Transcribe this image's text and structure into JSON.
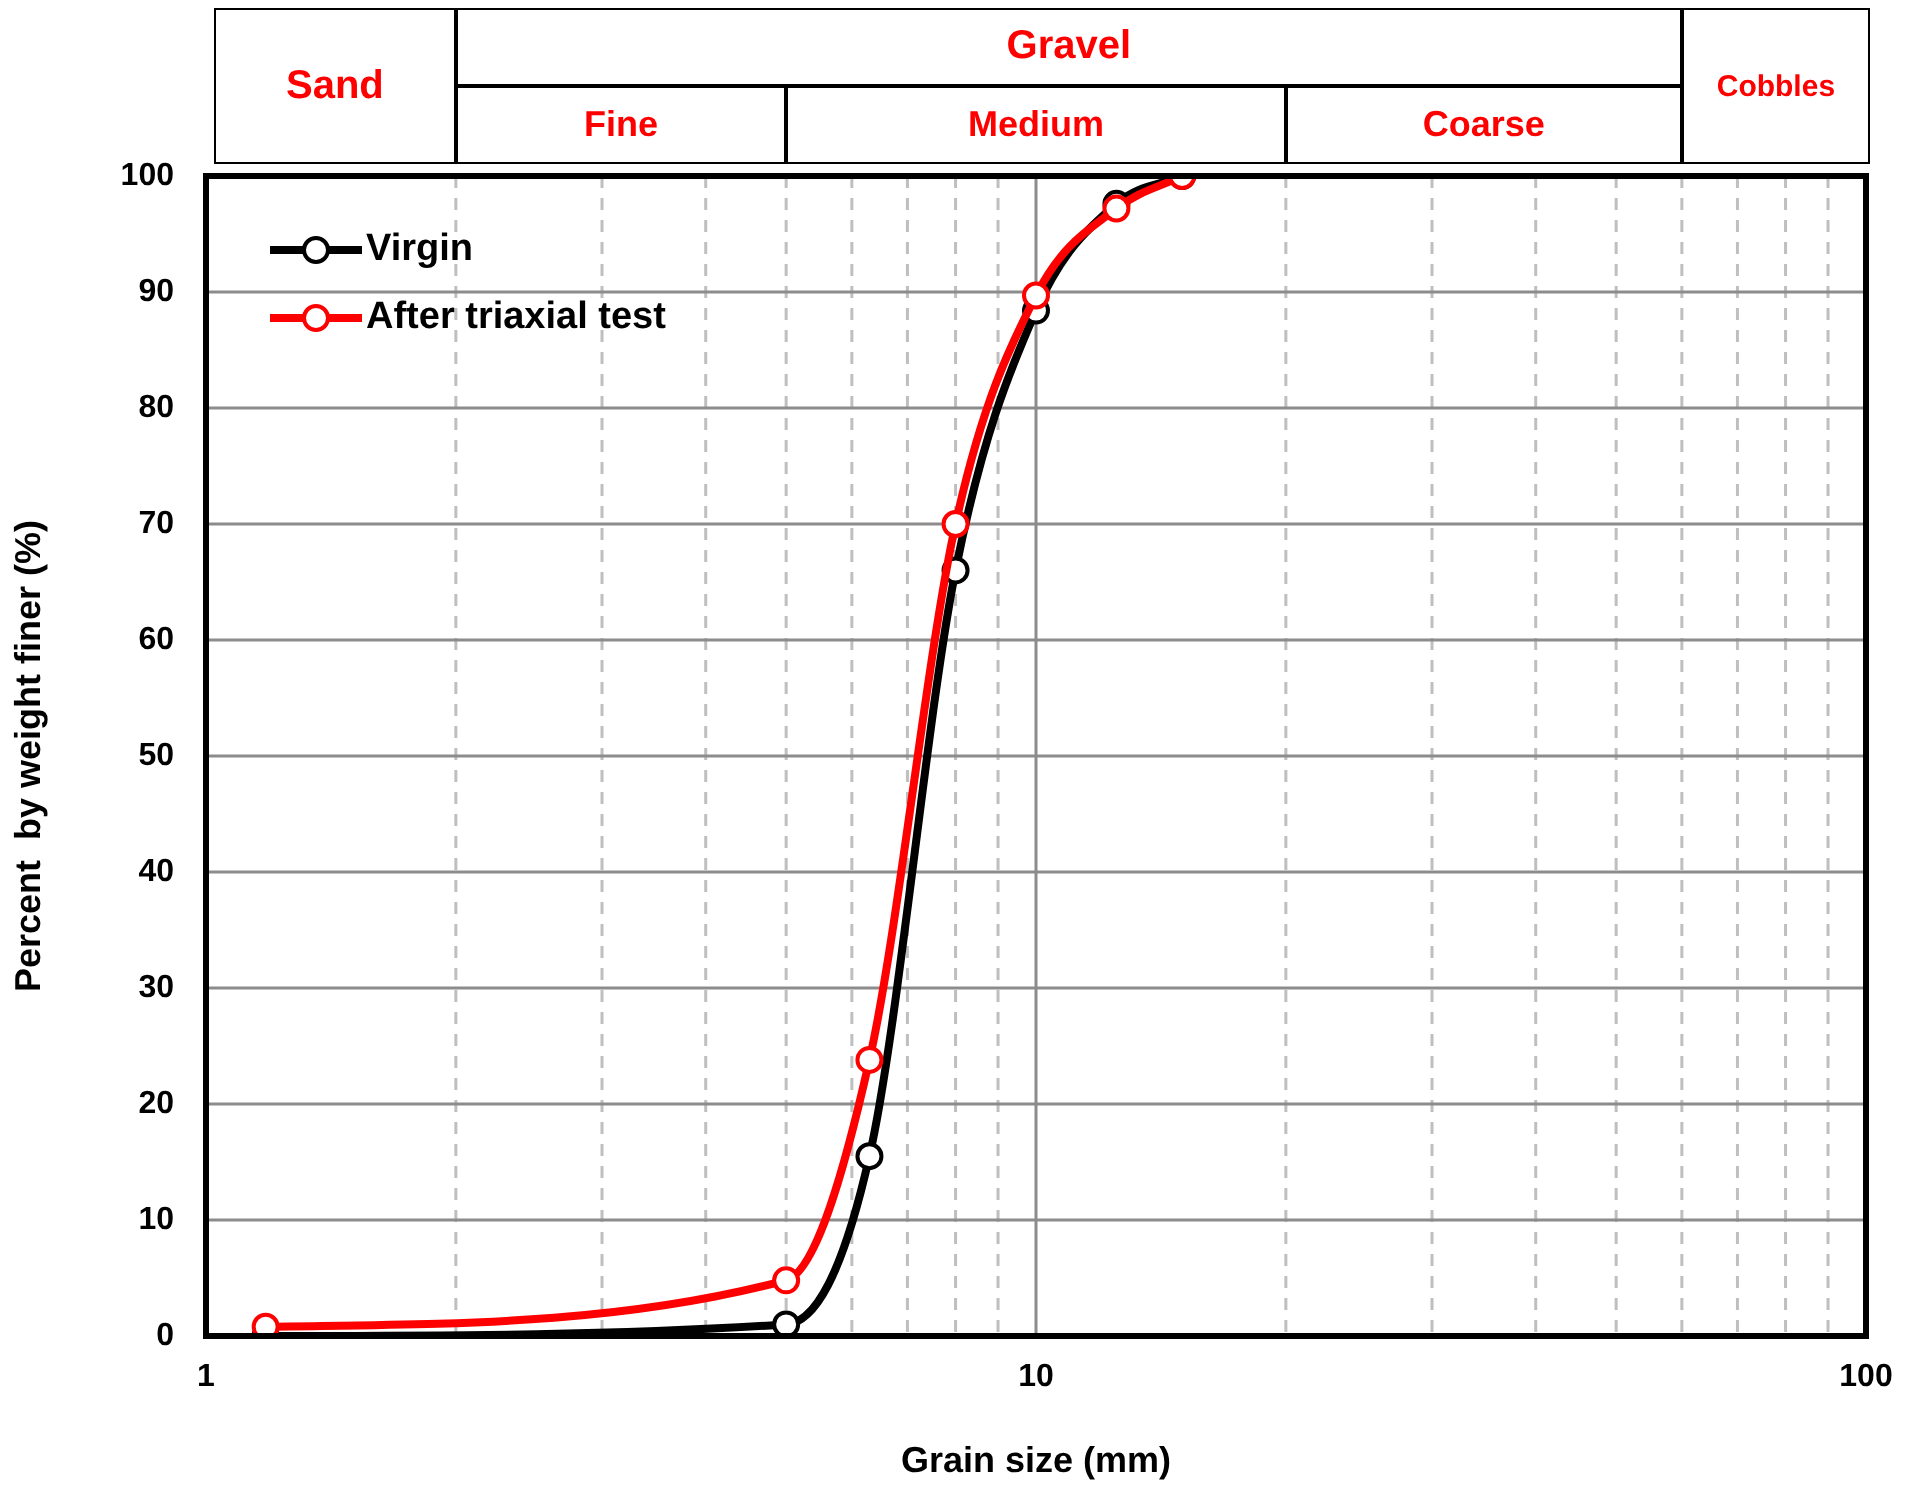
{
  "chart_data": {
    "type": "line",
    "xlabel": "Grain size (mm)",
    "ylabel": "Percent  by weight finer (%)",
    "log": "x",
    "xlim": [
      1,
      100
    ],
    "xticks": [
      1,
      {
        "value": 2,
        "label": null
      },
      {
        "value": 3,
        "label": null
      },
      {
        "value": 4,
        "label": null
      },
      {
        "value": 5,
        "label": null
      },
      {
        "value": 6,
        "label": null
      },
      {
        "value": 7,
        "label": null
      },
      {
        "value": 8,
        "label": null
      },
      {
        "value": 9,
        "label": null
      },
      10,
      {
        "value": 20,
        "label": null
      },
      {
        "value": 30,
        "label": null
      },
      {
        "value": 40,
        "label": null
      },
      {
        "value": 50,
        "label": null
      },
      {
        "value": 60,
        "label": null
      },
      {
        "value": 70,
        "label": null
      },
      {
        "value": 80,
        "label": null
      },
      {
        "value": 90,
        "label": null
      },
      100
    ],
    "ylim": [
      0,
      100
    ],
    "yticks": [
      0,
      10,
      20,
      30,
      40,
      50,
      60,
      70,
      80,
      90,
      100
    ],
    "grid": true,
    "legend": "top left",
    "marker": "circle",
    "series": [
      {
        "name": "Virgin",
        "color": "#000000",
        "x": [
          1.18,
          5,
          6.3,
          8,
          10,
          12.5,
          15
        ],
        "values": [
          0,
          1,
          15.5,
          66,
          88.4,
          97.6,
          100
        ]
      },
      {
        "name": "After triaxial test",
        "color": "#ff0000",
        "x": [
          1.18,
          5,
          6.3,
          8,
          10,
          12.5,
          15
        ],
        "values": [
          0.8,
          4.8,
          23.8,
          70,
          89.7,
          97.2,
          100
        ]
      }
    ],
    "annotations": [
      "Sand",
      "Gravel",
      "Fine",
      "Medium",
      "Coarse",
      "Cobbles"
    ]
  }
}
